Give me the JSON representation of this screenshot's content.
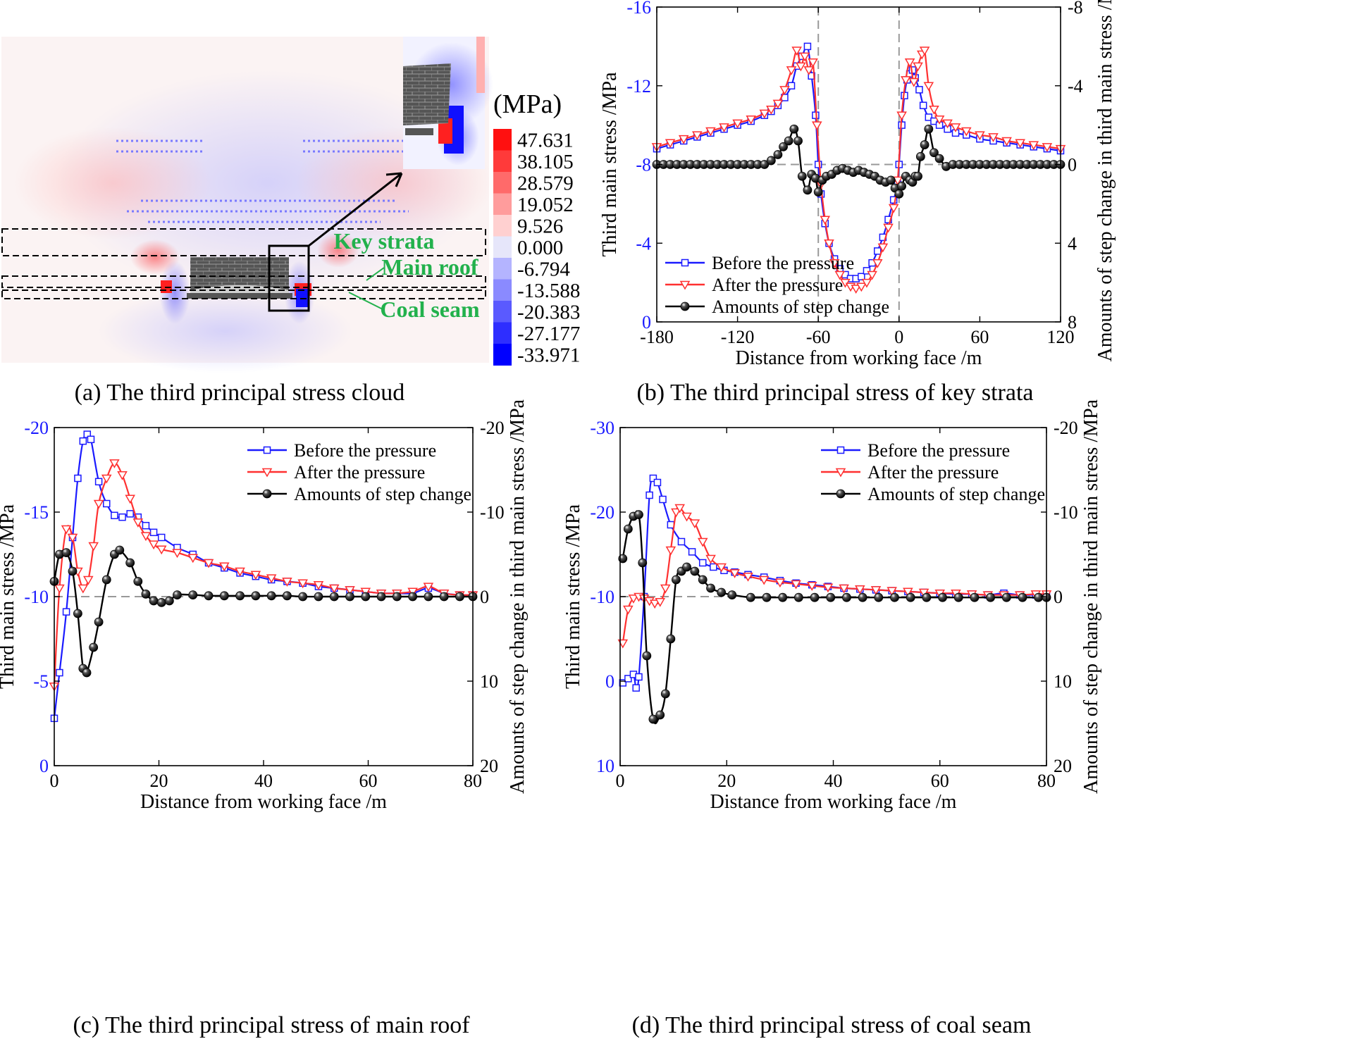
{
  "panel_a": {
    "caption": "(a)  The third principal stress cloud",
    "unit_label": "(MPa)",
    "legend_values": [
      "47.631",
      "38.105",
      "28.579",
      "19.052",
      "9.526",
      "0.000",
      "-6.794",
      "-13.588",
      "-20.383",
      "-27.177",
      "-33.971"
    ],
    "legend_colors": [
      "#ff1010",
      "#ff3a3a",
      "#ff6a6a",
      "#ff9c9c",
      "#ffd0d0",
      "#e6e6fa",
      "#b4b4ff",
      "#8a8aff",
      "#5a5aff",
      "#2e2eff",
      "#0000ff"
    ],
    "labels": {
      "key_strata": "Key strata",
      "main_roof": "Main roof",
      "coal_seam": "Coal seam"
    }
  },
  "chart_data": [
    {
      "id": "b",
      "type": "line",
      "caption": "(b)  The third principal stress of key strata",
      "xlabel": "Distance from working face /m",
      "ylabel": "Third main stress /MPa",
      "y2label": "Amounts of step change in third main stress /MPa",
      "xlim": [
        -180,
        120
      ],
      "xticks": [
        -180,
        -120,
        -60,
        0,
        60,
        120
      ],
      "ylim": [
        0,
        -16
      ],
      "yticks": [
        0,
        -4,
        -8,
        -12,
        -16
      ],
      "y2lim": [
        8,
        -8
      ],
      "y2ticks": [
        8,
        4,
        0,
        -4,
        -8
      ],
      "refline_y2": 0,
      "vlines": [
        -60,
        0
      ],
      "legend_position": "bottom-left",
      "series": [
        {
          "name": "Before the pressure",
          "color": "#1a1aff",
          "marker": "square",
          "axis": "left",
          "x": [
            -180,
            -170,
            -160,
            -150,
            -140,
            -130,
            -120,
            -110,
            -100,
            -95,
            -90,
            -85,
            -80,
            -76,
            -72,
            -68,
            -65,
            -62,
            -60,
            -58,
            -55,
            -52,
            -48,
            -44,
            -40,
            -36,
            -32,
            -28,
            -24,
            -20,
            -16,
            -12,
            -8,
            -4,
            -1,
            0,
            2,
            4,
            6,
            8,
            10,
            12,
            15,
            18,
            22,
            26,
            30,
            36,
            42,
            50,
            60,
            70,
            80,
            90,
            100,
            110,
            120
          ],
          "y": [
            -8.8,
            -9.0,
            -9.2,
            -9.4,
            -9.6,
            -9.8,
            -10.0,
            -10.2,
            -10.5,
            -10.7,
            -11.0,
            -11.4,
            -12.0,
            -13.0,
            -13.5,
            -14.0,
            -12.5,
            -10.5,
            -8.0,
            -6.5,
            -5.0,
            -4.0,
            -3.2,
            -2.7,
            -2.4,
            -2.2,
            -2.2,
            -2.3,
            -2.6,
            -3.0,
            -3.6,
            -4.3,
            -5.2,
            -6.2,
            -7.0,
            -8.0,
            -10.0,
            -11.5,
            -12.3,
            -12.6,
            -12.8,
            -12.4,
            -11.8,
            -11.0,
            -10.4,
            -10.2,
            -10.0,
            -9.8,
            -9.6,
            -9.5,
            -9.3,
            -9.2,
            -9.1,
            -9.0,
            -8.9,
            -8.8,
            -8.7
          ]
        },
        {
          "name": "After the pressure",
          "color": "#ff3030",
          "marker": "triangle-down",
          "axis": "left",
          "x": [
            -180,
            -170,
            -160,
            -150,
            -140,
            -130,
            -120,
            -110,
            -100,
            -95,
            -90,
            -85,
            -80,
            -76,
            -73,
            -70,
            -67,
            -64,
            -61,
            -58,
            -55,
            -52,
            -48,
            -44,
            -40,
            -36,
            -32,
            -28,
            -24,
            -20,
            -16,
            -12,
            -8,
            -4,
            -1,
            2,
            5,
            8,
            11,
            14,
            17,
            19,
            22,
            26,
            30,
            36,
            42,
            50,
            60,
            70,
            80,
            90,
            100,
            110,
            120
          ],
          "y": [
            -8.9,
            -9.1,
            -9.3,
            -9.5,
            -9.7,
            -9.9,
            -10.1,
            -10.3,
            -10.6,
            -10.8,
            -11.1,
            -11.8,
            -12.8,
            -13.8,
            -13.0,
            -13.5,
            -12.8,
            -13.2,
            -10.0,
            -7.0,
            -5.2,
            -4.0,
            -3.0,
            -2.4,
            -2.0,
            -1.8,
            -1.7,
            -1.8,
            -2.0,
            -2.4,
            -3.0,
            -3.8,
            -4.8,
            -5.8,
            -7.2,
            -10.5,
            -12.3,
            -13.2,
            -12.2,
            -13.0,
            -13.6,
            -13.8,
            -12.0,
            -10.8,
            -10.3,
            -10.1,
            -9.9,
            -9.7,
            -9.5,
            -9.4,
            -9.2,
            -9.1,
            -9.0,
            -8.9,
            -8.8
          ]
        },
        {
          "name": "Amounts of step change",
          "color": "#000000",
          "marker": "ball",
          "axis": "right",
          "x": [
            -180,
            -175,
            -170,
            -165,
            -160,
            -155,
            -150,
            -145,
            -140,
            -135,
            -130,
            -125,
            -120,
            -115,
            -110,
            -105,
            -100,
            -95,
            -90,
            -86,
            -82,
            -78,
            -75,
            -72,
            -68,
            -65,
            -62,
            -60,
            -57,
            -54,
            -50,
            -46,
            -42,
            -38,
            -34,
            -30,
            -26,
            -22,
            -18,
            -14,
            -10,
            -6,
            -3,
            0,
            2,
            5,
            8,
            10,
            12,
            14,
            16,
            19,
            22,
            26,
            30,
            35,
            40,
            45,
            50,
            55,
            60,
            65,
            70,
            75,
            80,
            85,
            90,
            95,
            100,
            105,
            110,
            115,
            120
          ],
          "y": [
            0,
            0,
            0,
            0,
            0,
            0,
            0,
            0,
            0,
            0,
            0,
            0,
            0,
            0,
            0,
            0,
            0,
            -0.2,
            -0.5,
            -0.9,
            -1.2,
            -1.8,
            -1.2,
            0.6,
            1.3,
            0.5,
            0.7,
            1.4,
            0.8,
            0.6,
            0.5,
            0.3,
            0.2,
            0.3,
            0.4,
            0.3,
            0.4,
            0.5,
            0.6,
            0.8,
            0.9,
            0.8,
            1.2,
            1.5,
            1.1,
            0.6,
            0.8,
            0.9,
            0.6,
            0.6,
            -0.4,
            -1.0,
            -1.8,
            -0.6,
            -0.3,
            0.1,
            0,
            0,
            0,
            0,
            0,
            0,
            0,
            0,
            0,
            0,
            0,
            0,
            0,
            0,
            0,
            0,
            0
          ]
        }
      ]
    },
    {
      "id": "c",
      "type": "line",
      "caption": "(c)  The third principal stress of main roof",
      "xlabel": "Distance from working face /m",
      "ylabel": "Third main stress /MPa",
      "y2label": "Amounts of step change in third main stress /MPa",
      "xlim": [
        0,
        80
      ],
      "xticks": [
        0,
        20,
        40,
        60,
        80
      ],
      "ylim": [
        0,
        -20
      ],
      "yticks": [
        0,
        -5,
        -10,
        -15,
        -20
      ],
      "y2lim": [
        20,
        -20
      ],
      "y2ticks": [
        20,
        10,
        0,
        -10,
        -20
      ],
      "refline_y2": 0,
      "vlines": [],
      "legend_position": "top-right",
      "series": [
        {
          "name": "Before the pressure",
          "color": "#1a1aff",
          "marker": "square",
          "axis": "left",
          "x": [
            0,
            1,
            2.3,
            3.5,
            4.5,
            5.5,
            6.3,
            7.0,
            8.5,
            10,
            11.5,
            13,
            14.5,
            16,
            17.5,
            19,
            20.5,
            23.5,
            26.5,
            29.5,
            32.5,
            35.5,
            38.5,
            41.5,
            44.5,
            47.5,
            50.5,
            53.5,
            56.5,
            59.5,
            62.5,
            65.5,
            68.5,
            71.5,
            74.5,
            77.5,
            80
          ],
          "y": [
            -2.8,
            -5.5,
            -9.1,
            -13.5,
            -17.0,
            -19.2,
            -19.6,
            -19.3,
            -16.8,
            -15.5,
            -14.8,
            -14.7,
            -14.9,
            -14.7,
            -14.2,
            -13.8,
            -13.5,
            -12.9,
            -12.5,
            -12.0,
            -11.7,
            -11.4,
            -11.2,
            -11.0,
            -10.9,
            -10.8,
            -10.6,
            -10.5,
            -10.4,
            -10.3,
            -10.2,
            -10.2,
            -10.2,
            -10.5,
            -10.2,
            -10.1,
            -10.1
          ]
        },
        {
          "name": "After the pressure",
          "color": "#ff3030",
          "marker": "triangle-down",
          "axis": "left",
          "x": [
            0,
            1,
            2.3,
            3.5,
            4.5,
            5.5,
            6.5,
            7.5,
            8.5,
            10,
            11.5,
            13,
            14.5,
            16,
            17.5,
            19,
            20.5,
            23.5,
            26.5,
            29.5,
            32.5,
            35.5,
            38.5,
            41.5,
            44.5,
            47.5,
            50.5,
            53.5,
            56.5,
            59.5,
            62.5,
            65.5,
            68.5,
            71.5,
            74.5,
            77.5,
            80
          ],
          "y": [
            -4.7,
            -10.5,
            -14.0,
            -13.5,
            -11.5,
            -10.5,
            -11.0,
            -13.0,
            -15.5,
            -17.0,
            -17.9,
            -17.2,
            -15.8,
            -14.4,
            -13.6,
            -13.1,
            -12.8,
            -12.6,
            -12.3,
            -12.0,
            -11.8,
            -11.5,
            -11.3,
            -11.1,
            -10.9,
            -10.8,
            -10.7,
            -10.5,
            -10.4,
            -10.3,
            -10.2,
            -10.2,
            -10.3,
            -10.6,
            -10.2,
            -10.1,
            -10.1
          ]
        },
        {
          "name": "Amounts of step change",
          "color": "#000000",
          "marker": "ball",
          "axis": "right",
          "x": [
            0,
            1,
            2.3,
            3.5,
            4.5,
            5.5,
            6.2,
            7.5,
            8.5,
            10,
            11.5,
            12.5,
            14.5,
            16,
            17.5,
            19,
            20.5,
            22,
            23.5,
            26.5,
            29.5,
            32.5,
            35.5,
            38.5,
            41.5,
            44.5,
            47.5,
            50.5,
            53.5,
            56.5,
            59.5,
            62.5,
            65.5,
            68.5,
            71.5,
            74.5,
            77.5,
            80
          ],
          "y": [
            -1.8,
            -5.0,
            -5.2,
            -3.0,
            2.0,
            8.5,
            9.0,
            6.0,
            3.0,
            -2.0,
            -5.0,
            -5.5,
            -4.0,
            -1.8,
            -0.3,
            0.5,
            0.7,
            0.5,
            -0.2,
            -0.2,
            -0.1,
            -0.1,
            -0.1,
            -0.1,
            -0.1,
            -0.1,
            0,
            0,
            0,
            0,
            0,
            0,
            0,
            0,
            0,
            0,
            0,
            0
          ]
        }
      ]
    },
    {
      "id": "d",
      "type": "line",
      "caption": "(d)  The third principal stress of coal seam",
      "xlabel": "Distance from working face /m",
      "ylabel": "Third main stress /MPa",
      "y2label": "Amounts of step change in third main stress /MPa",
      "xlim": [
        0,
        80
      ],
      "xticks": [
        0,
        20,
        40,
        60,
        80
      ],
      "ylim": [
        10,
        -30
      ],
      "yticks": [
        10,
        0,
        -10,
        -20,
        -30
      ],
      "y2lim": [
        20,
        -20
      ],
      "y2ticks": [
        20,
        10,
        0,
        -10,
        -20
      ],
      "refline_y2": 0,
      "vlines": [],
      "legend_position": "top-right",
      "series": [
        {
          "name": "Before the pressure",
          "color": "#1a1aff",
          "marker": "square",
          "axis": "left",
          "x": [
            0.5,
            1.5,
            2.5,
            3.0,
            3.5,
            4.5,
            5.5,
            6.2,
            7.0,
            8.0,
            9.5,
            11.5,
            13.5,
            15.5,
            17.5,
            19.5,
            21.5,
            24,
            27,
            30,
            33,
            36,
            39,
            42,
            45,
            48,
            51,
            54,
            57,
            60,
            63,
            66,
            69,
            72,
            75,
            78,
            80
          ],
          "y": [
            0.2,
            -0.3,
            -0.8,
            0.8,
            -0.5,
            -10.0,
            -22.0,
            -24.0,
            -23.5,
            -21.5,
            -18.5,
            -16.5,
            -15.3,
            -14.0,
            -13.5,
            -13.1,
            -12.9,
            -12.6,
            -12.3,
            -11.9,
            -11.6,
            -11.4,
            -11.2,
            -11.0,
            -10.9,
            -10.8,
            -10.7,
            -10.6,
            -10.5,
            -10.4,
            -10.3,
            -10.3,
            -10.2,
            -10.4,
            -10.2,
            -10.2,
            -10.1
          ]
        },
        {
          "name": "After the pressure",
          "color": "#ff3030",
          "marker": "triangle-down",
          "axis": "left",
          "x": [
            0.5,
            1.5,
            2.5,
            3.5,
            4.5,
            5.5,
            6.5,
            7.5,
            8.5,
            9.5,
            10.5,
            11.2,
            12.5,
            14,
            15.5,
            17,
            19,
            21.5,
            24,
            27,
            30,
            33,
            36,
            39,
            42,
            45,
            48,
            51,
            54,
            57,
            60,
            63,
            66,
            69,
            72,
            75,
            78,
            80
          ],
          "y": [
            -4.5,
            -8.5,
            -9.8,
            -10.0,
            -9.8,
            -9.5,
            -9.2,
            -9.4,
            -11.0,
            -15.5,
            -20.0,
            -20.5,
            -19.5,
            -18.7,
            -16.5,
            -14.5,
            -13.5,
            -12.8,
            -12.4,
            -12.0,
            -11.7,
            -11.5,
            -11.3,
            -11.1,
            -11.0,
            -10.9,
            -10.8,
            -10.7,
            -10.6,
            -10.5,
            -10.4,
            -10.4,
            -10.3,
            -10.2,
            -10.2,
            -10.2,
            -10.3,
            -10.3
          ]
        },
        {
          "name": "Amounts of step change",
          "color": "#000000",
          "marker": "ball",
          "axis": "right",
          "x": [
            0.5,
            1.5,
            2.5,
            3.5,
            4.2,
            5.0,
            6.2,
            7.5,
            8.5,
            9.5,
            10.5,
            11.5,
            12.5,
            14,
            15.5,
            17,
            19,
            21,
            24.5,
            27.5,
            30.5,
            33.5,
            36.5,
            39.5,
            42.5,
            45.5,
            48.5,
            51.5,
            54.5,
            57.5,
            60.5,
            63.5,
            66.5,
            69.5,
            72.5,
            75.5,
            78.5,
            80
          ],
          "y": [
            -4.5,
            -8.0,
            -9.5,
            -9.7,
            -4.0,
            7.0,
            14.5,
            14.0,
            11.5,
            5.0,
            -2.0,
            -3.0,
            -3.5,
            -3.0,
            -2.0,
            -1.0,
            -0.5,
            -0.2,
            0.1,
            0.1,
            0.1,
            0.1,
            0.1,
            0.1,
            0.1,
            0.1,
            0.1,
            0.1,
            0.1,
            0.1,
            0.1,
            0.1,
            0.1,
            0.1,
            0.1,
            0.1,
            0.1,
            0.1
          ]
        }
      ]
    }
  ]
}
